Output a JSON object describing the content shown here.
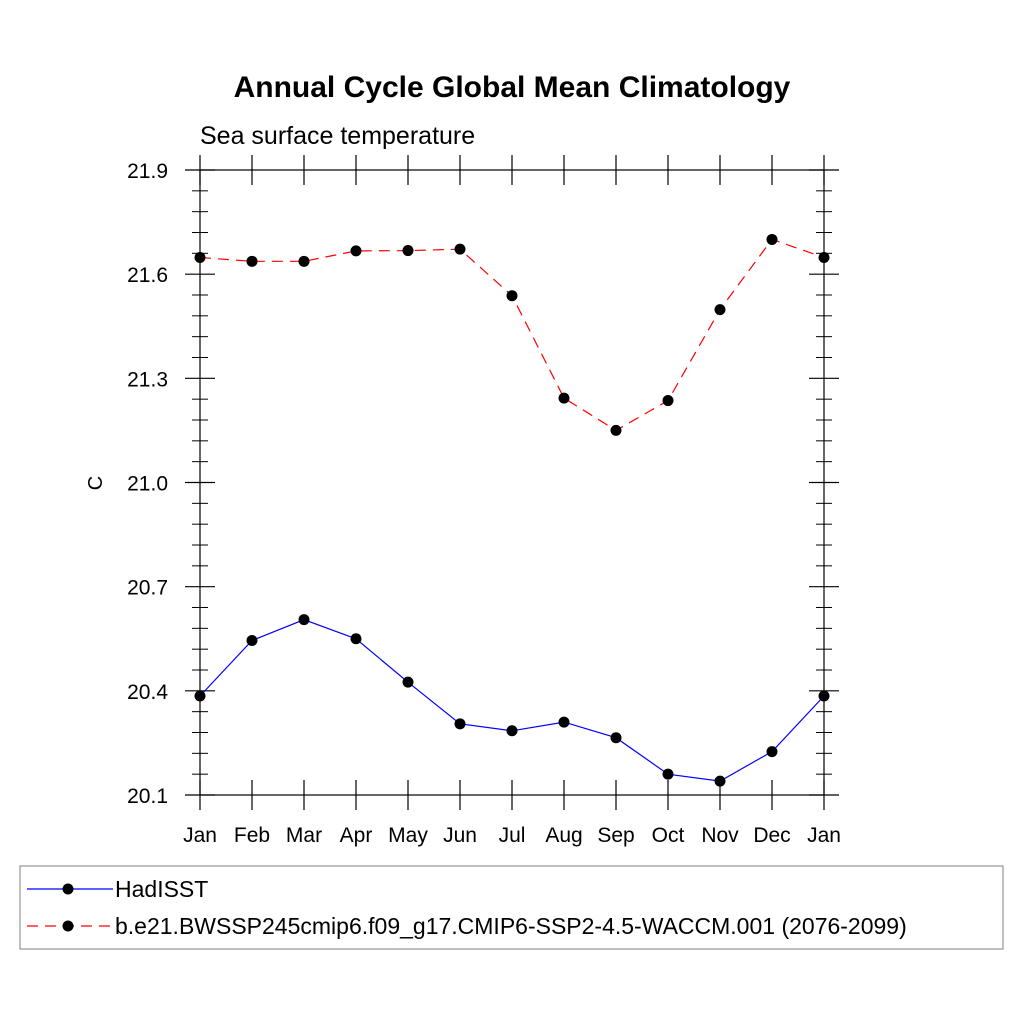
{
  "chart_data": {
    "type": "line",
    "title": "Annual Cycle Global Mean Climatology",
    "subtitle": "Sea surface temperature",
    "xlabel": "",
    "ylabel": "C",
    "categories": [
      "Jan",
      "Feb",
      "Mar",
      "Apr",
      "May",
      "Jun",
      "Jul",
      "Aug",
      "Sep",
      "Oct",
      "Nov",
      "Dec",
      "Jan"
    ],
    "ylim": [
      20.1,
      21.9
    ],
    "yticks": [
      "20.1",
      "20.4",
      "20.7",
      "21.0",
      "21.3",
      "21.6",
      "21.9"
    ],
    "grid": false,
    "legend_position": "bottom",
    "series": [
      {
        "name": "HadISST",
        "color": "#0000ff",
        "dash": "solid",
        "values": [
          20.385,
          20.545,
          20.605,
          20.55,
          20.425,
          20.305,
          20.285,
          20.31,
          20.265,
          20.16,
          20.14,
          20.225,
          20.385
        ]
      },
      {
        "name": "b.e21.BWSSP245cmip6.f09_g17.CMIP6-SSP2-4.5-WACCM.001 (2076-2099)",
        "color": "#ff0000",
        "dash": "dashed",
        "values": [
          21.648,
          21.637,
          21.637,
          21.667,
          21.668,
          21.672,
          21.538,
          21.243,
          21.15,
          21.236,
          21.498,
          21.7,
          21.648
        ]
      }
    ]
  }
}
